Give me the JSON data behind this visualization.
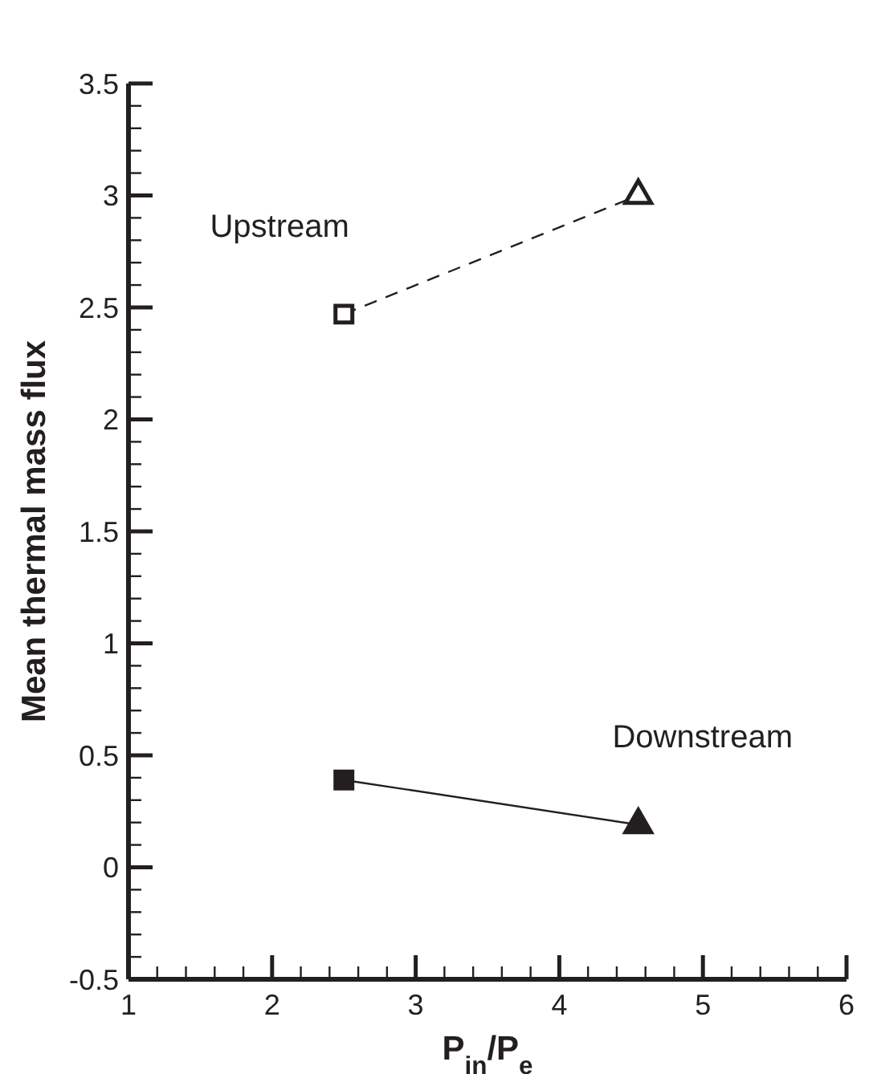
{
  "chart_data": {
    "type": "line",
    "xlabel": "P$_{in}$/P$_{e}$",
    "ylabel": "Mean thermal mass flux",
    "xlim": [
      1,
      6
    ],
    "ylim": [
      -0.5,
      3.5
    ],
    "xticks": [
      1,
      {
        "value": 1.2,
        "label": null
      },
      {
        "value": 1.4,
        "label": null
      },
      {
        "value": 1.6,
        "label": null
      },
      {
        "value": 1.8,
        "label": null
      },
      2,
      {
        "value": 2.2,
        "label": null
      },
      {
        "value": 2.4,
        "label": null
      },
      {
        "value": 2.6,
        "label": null
      },
      {
        "value": 2.8,
        "label": null
      },
      3,
      {
        "value": 3.2,
        "label": null
      },
      {
        "value": 3.4,
        "label": null
      },
      {
        "value": 3.6,
        "label": null
      },
      {
        "value": 3.8,
        "label": null
      },
      4,
      {
        "value": 4.2,
        "label": null
      },
      {
        "value": 4.4,
        "label": null
      },
      {
        "value": 4.6,
        "label": null
      },
      {
        "value": 4.8,
        "label": null
      },
      5,
      {
        "value": 5.2,
        "label": null
      },
      {
        "value": 5.4,
        "label": null
      },
      {
        "value": 5.6,
        "label": null
      },
      {
        "value": 5.8,
        "label": null
      },
      6
    ],
    "yticks": [
      -0.5,
      {
        "value": -0.4,
        "label": null
      },
      {
        "value": -0.3,
        "label": null
      },
      {
        "value": -0.2,
        "label": null
      },
      {
        "value": -0.1,
        "label": null
      },
      0,
      {
        "value": 0.1,
        "label": null
      },
      {
        "value": 0.2,
        "label": null
      },
      {
        "value": 0.3,
        "label": null
      },
      {
        "value": 0.4,
        "label": null
      },
      0.5,
      {
        "value": 0.6,
        "label": null
      },
      {
        "value": 0.7,
        "label": null
      },
      {
        "value": 0.8,
        "label": null
      },
      {
        "value": 0.9,
        "label": null
      },
      1,
      {
        "value": 1.1,
        "label": null
      },
      {
        "value": 1.2,
        "label": null
      },
      {
        "value": 1.3,
        "label": null
      },
      {
        "value": 1.4,
        "label": null
      },
      1.5,
      {
        "value": 1.6,
        "label": null
      },
      {
        "value": 1.7,
        "label": null
      },
      {
        "value": 1.8,
        "label": null
      },
      {
        "value": 1.9,
        "label": null
      },
      2,
      {
        "value": 2.1,
        "label": null
      },
      {
        "value": 2.2,
        "label": null
      },
      {
        "value": 2.3,
        "label": null
      },
      {
        "value": 2.4,
        "label": null
      },
      2.5,
      {
        "value": 2.6,
        "label": null
      },
      {
        "value": 2.7,
        "label": null
      },
      {
        "value": 2.8,
        "label": null
      },
      {
        "value": 2.9,
        "label": null
      },
      3,
      {
        "value": 3.1,
        "label": null
      },
      {
        "value": 3.2,
        "label": null
      },
      {
        "value": 3.3,
        "label": null
      },
      {
        "value": 3.4,
        "label": null
      },
      3.5
    ],
    "grid": false,
    "x": [
      2.5,
      4.55
    ],
    "series": [
      {
        "name": "Upstream",
        "color": "#231f20",
        "colors": [
          "#ffffff",
          "#ffffff"
        ],
        "values": [
          2.47,
          3.0
        ],
        "line_style": "dashed",
        "marker": [
          "square",
          "triangle"
        ]
      },
      {
        "name": "Downstream",
        "color": "#231f20",
        "colors": [
          "#231f20",
          "#231f20"
        ],
        "values": [
          0.39,
          0.19
        ],
        "line_style": "solid",
        "marker": [
          "square",
          "triangle"
        ]
      }
    ]
  }
}
